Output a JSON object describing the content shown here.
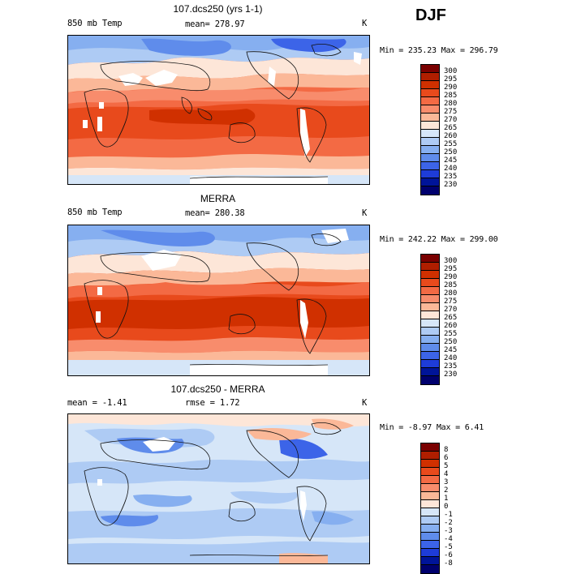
{
  "season": "DJF",
  "panels": [
    {
      "title": "107.dcs250 (yrs 1-1)",
      "left_label": "850 mb Temp",
      "center_label": "mean= 278.97",
      "units": "K",
      "minmax": "Min = 235.23 Max = 296.79",
      "colorbar_labels": [
        "300",
        "295",
        "290",
        "285",
        "280",
        "275",
        "270",
        "265",
        "260",
        "255",
        "250",
        "245",
        "240",
        "235",
        "230"
      ],
      "colorbar_colors": [
        "#7a0000",
        "#b01e00",
        "#d03000",
        "#e84a1c",
        "#f36a44",
        "#f88c6c",
        "#fbb898",
        "#fde6d8",
        "#d6e6f8",
        "#aecbf4",
        "#86aff0",
        "#5f8ceb",
        "#3c64e8",
        "#1e3cd8",
        "#001499",
        "#00006e"
      ]
    },
    {
      "title": "MERRA",
      "left_label": "850 mb Temp",
      "center_label": "mean= 280.38",
      "units": "K",
      "minmax": "Min = 242.22 Max = 299.00",
      "colorbar_labels": [
        "300",
        "295",
        "290",
        "285",
        "280",
        "275",
        "270",
        "265",
        "260",
        "255",
        "250",
        "245",
        "240",
        "235",
        "230"
      ],
      "colorbar_colors": [
        "#7a0000",
        "#b01e00",
        "#d03000",
        "#e84a1c",
        "#f36a44",
        "#f88c6c",
        "#fbb898",
        "#fde6d8",
        "#d6e6f8",
        "#aecbf4",
        "#86aff0",
        "#5f8ceb",
        "#3c64e8",
        "#1e3cd8",
        "#001499",
        "#00006e"
      ]
    },
    {
      "title": "107.dcs250 - MERRA",
      "left_label": "mean =   -1.41",
      "center_label": "rmse =    1.72",
      "units": "K",
      "minmax": "Min =  -8.97 Max =   6.41",
      "colorbar_labels": [
        "8",
        "6",
        "5",
        "4",
        "3",
        "2",
        "1",
        "0",
        "-1",
        "-2",
        "-3",
        "-4",
        "-5",
        "-6",
        "-8"
      ],
      "colorbar_colors": [
        "#7a0000",
        "#b01e00",
        "#d03000",
        "#e84a1c",
        "#f36a44",
        "#f88c6c",
        "#fbb898",
        "#fde6d8",
        "#d6e6f8",
        "#aecbf4",
        "#86aff0",
        "#5f8ceb",
        "#3c64e8",
        "#1e3cd8",
        "#001499",
        "#00006e"
      ]
    }
  ]
}
